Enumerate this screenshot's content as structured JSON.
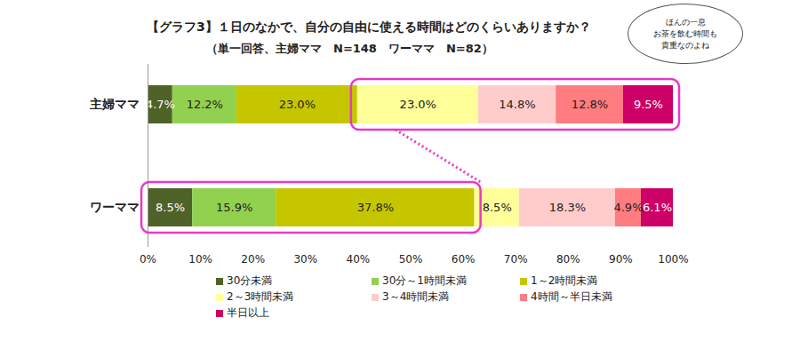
{
  "chart_data": {
    "type": "bar",
    "title": "【グラフ3】１日のなかで、自分の自由に使える時間はどのくらいありますか？",
    "subtitle": "（単一回答、主婦ママ　N=148　ワーママ　N=82）",
    "orientation": "horizontal",
    "stacked": true,
    "data_labels": true,
    "legend": "bottom",
    "categories": [
      "主婦ママ",
      "ワーママ"
    ],
    "series": [
      {
        "name": "30分未満",
        "color": "#4f6228",
        "values": [
          4.7,
          8.5
        ],
        "value_labels": [
          "4.7%",
          "8.5%"
        ]
      },
      {
        "name": "30分～1時間未満",
        "color": "#92d050",
        "values": [
          12.2,
          15.9
        ],
        "value_labels": [
          "12.2%",
          "15.9%"
        ]
      },
      {
        "name": "1～2時間未満",
        "color": "#c6c600",
        "values": [
          23.0,
          37.8
        ],
        "value_labels": [
          "23.0%",
          "37.8%"
        ]
      },
      {
        "name": "2～3時間未満",
        "color": "#ffff99",
        "values": [
          23.0,
          8.5
        ],
        "value_labels": [
          "23.0%",
          "8.5%"
        ]
      },
      {
        "name": "3～4時間未満",
        "color": "#ffcccc",
        "values": [
          14.8,
          18.3
        ],
        "value_labels": [
          "14.8%",
          "18.3%"
        ]
      },
      {
        "name": "4時間～半日未満",
        "color": "#ff7c80",
        "values": [
          12.8,
          4.9
        ],
        "value_labels": [
          "12.8%",
          "4.9%"
        ]
      },
      {
        "name": "半日以上",
        "color": "#cc0066",
        "values": [
          9.5,
          6.1
        ],
        "value_labels": [
          "9.5%",
          "6.1%"
        ]
      }
    ],
    "xlim": [
      0,
      100
    ],
    "xticks": [
      {
        "value": 0,
        "label": "0%"
      },
      {
        "value": 10,
        "label": "10%"
      },
      {
        "value": 20,
        "label": "20%"
      },
      {
        "value": 30,
        "label": "30%"
      },
      {
        "value": 40,
        "label": "40%"
      },
      {
        "value": 50,
        "label": "50%"
      },
      {
        "value": 60,
        "label": "60%"
      },
      {
        "value": 70,
        "label": "70%"
      },
      {
        "value": 80,
        "label": "80%"
      },
      {
        "value": 90,
        "label": "90%"
      },
      {
        "value": 100,
        "label": "100%"
      }
    ],
    "annotations": [
      "ほんの一息",
      "お茶を飲む時間も",
      "貴重なのよね"
    ]
  }
}
